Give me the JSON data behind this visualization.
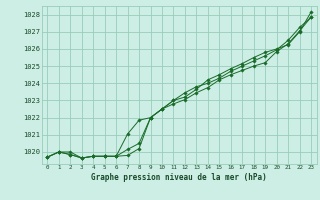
{
  "background_color": "#cceee4",
  "grid_color": "#99ccbb",
  "line_color": "#1a6b2a",
  "marker_color": "#1a6b2a",
  "xlabel": "Graphe pression niveau de la mer (hPa)",
  "ylim": [
    1019.3,
    1028.5
  ],
  "xlim": [
    -0.5,
    23.5
  ],
  "yticks": [
    1020,
    1021,
    1022,
    1023,
    1024,
    1025,
    1026,
    1027,
    1028
  ],
  "xticks": [
    0,
    1,
    2,
    3,
    4,
    5,
    6,
    7,
    8,
    9,
    10,
    11,
    12,
    13,
    14,
    15,
    16,
    17,
    18,
    19,
    20,
    21,
    22,
    23
  ],
  "series1": [
    1019.7,
    1020.0,
    1020.0,
    1019.65,
    1019.75,
    1019.75,
    1019.75,
    1019.8,
    1020.2,
    1022.0,
    1022.5,
    1022.8,
    1023.05,
    1023.45,
    1023.75,
    1024.2,
    1024.5,
    1024.75,
    1025.0,
    1025.2,
    1025.85,
    1026.3,
    1027.05,
    1027.85
  ],
  "series2": [
    1019.7,
    1020.0,
    1019.85,
    1019.65,
    1019.75,
    1019.75,
    1019.75,
    1021.05,
    1021.85,
    1022.0,
    1022.5,
    1023.0,
    1023.2,
    1023.65,
    1024.2,
    1024.5,
    1024.85,
    1025.15,
    1025.5,
    1025.8,
    1026.0,
    1026.25,
    1027.0,
    1028.15
  ],
  "series3": [
    1019.7,
    1020.0,
    1019.85,
    1019.65,
    1019.75,
    1019.75,
    1019.75,
    1020.15,
    1020.5,
    1022.0,
    1022.5,
    1023.0,
    1023.45,
    1023.8,
    1024.0,
    1024.3,
    1024.7,
    1025.0,
    1025.3,
    1025.6,
    1025.95,
    1026.5,
    1027.25,
    1027.85
  ]
}
